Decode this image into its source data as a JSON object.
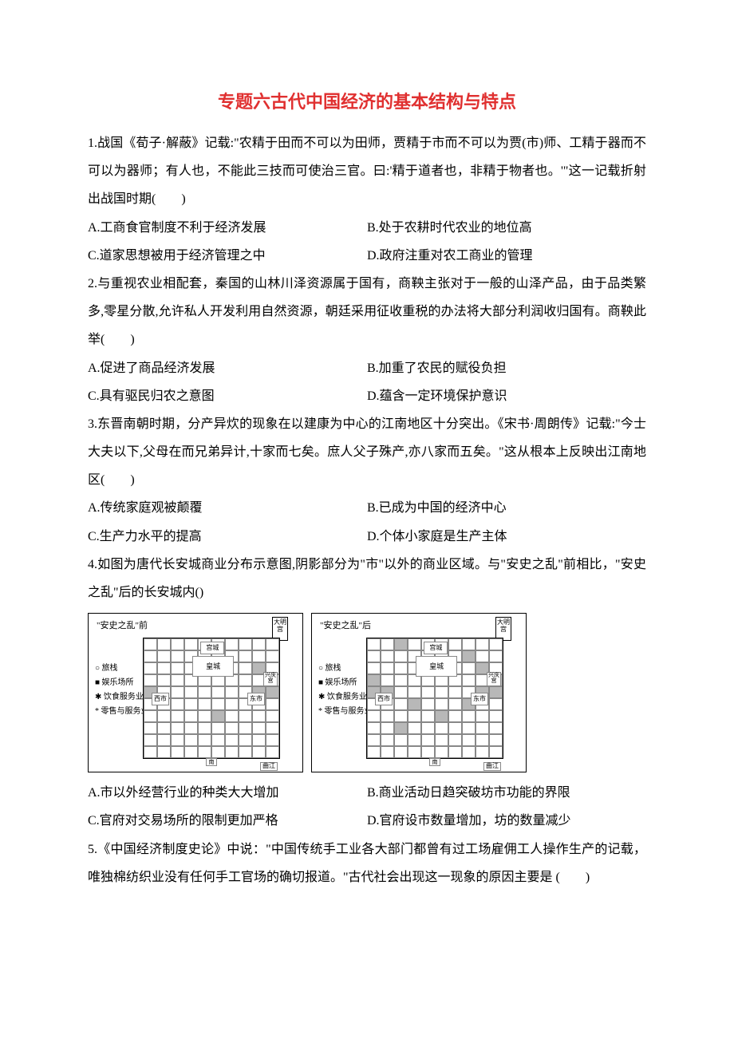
{
  "title": "专题六古代中国经济的基本结构与特点",
  "q1": {
    "stem": "1.战国《荀子·解蔽》记载:\"农精于田而不可以为田师，贾精于市而不可以为贾(市)师、工精于器而不可以为器师；有人也，不能此三技而可使治三官。曰:'精于道者也，非精于物者也。'\"这一记载折射出战国时期(　　)",
    "A": "A.工商食官制度不利于经济发展",
    "B": "B.处于农耕时代农业的地位高",
    "C": "C.道家思想被用于经济管理之中",
    "D": "D.政府注重对农工商业的管理"
  },
  "q2": {
    "stem": "2.与重视农业相配套，秦国的山林川泽资源属于国有，商鞅主张对于一般的山泽产品，由于品类繁多,零星分散,允许私人开发利用自然资源，朝廷采用征收重税的办法将大部分利润收归国有。商鞅此举(　　)",
    "A": "A.促进了商品经济发展",
    "B": "B.加重了农民的赋役负担",
    "C": "C.具有驱民归农之意图",
    "D": "D.蕴含一定环境保护意识"
  },
  "q3": {
    "stem": "3.东晋南朝时期，分产异炊的现象在以建康为中心的江南地区十分突出。《宋书·周朗传》记载:\"今士大夫以下,父母在而兄弟异计,十家而七矣。庶人父子殊产,亦八家而五矣。\"这从根本上反映出江南地区(　　)",
    "A": "A.传统家庭观被颠覆",
    "B": "B.已成为中国的经济中心",
    "C": "C.生产力水平的提高",
    "D": "D.个体小家庭是生产主体"
  },
  "q4": {
    "stem": "4.如图为唐代长安城商业分布示意图,阴影部分为\"市\"以外的商业区域。与\"安史之乱\"前相比，\"安史之乱\"后的长安城内()",
    "A": "A.市以外经营行业的种类大大增加",
    "B": "B.商业活动日趋突破坊市功能的界限",
    "C": "C.官府对交易场所的限制更加严格",
    "D": "D.官府设市数量增加，坊的数量减少"
  },
  "q5": {
    "stem": "5.《中国经济制度史论》中说：\"中国传统手工业各大部门都曾有过工场雇佣工人操作生产的记载，唯独棉纺织业没有任何手工官场的确切报道。\"古代社会出现这一现象的原因主要是 (　　)"
  },
  "figure": {
    "panel_left_title": "\"安史之乱\"前",
    "panel_right_title": "\"安史之乱\"后",
    "legend1": "○ 旅栈",
    "legend2": "■ 娱乐场所",
    "legend3": "✱ 饮食服务业",
    "legend4": "* 零售与服务业",
    "daminggong": "大明宫",
    "gongcheng": "宫城",
    "huangcheng": "皇城",
    "xishi": "西市",
    "dongshi": "东市",
    "xingqing": "兴庆宫",
    "qujiang": "曲江",
    "nanshi": "南"
  },
  "colors": {
    "title": "#e03030",
    "text": "#000000",
    "bg": "#ffffff"
  }
}
